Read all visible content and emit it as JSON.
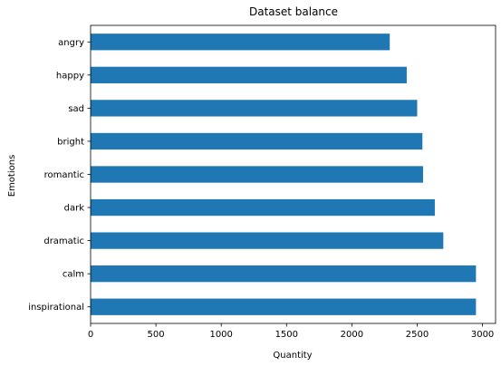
{
  "chart_data": {
    "type": "bar",
    "orientation": "horizontal",
    "title": "Dataset balance",
    "xlabel": "Quantity",
    "ylabel": "Emotions",
    "categories": [
      "angry",
      "happy",
      "sad",
      "bright",
      "romantic",
      "dark",
      "dramatic",
      "calm",
      "inspirational"
    ],
    "values": [
      2290,
      2420,
      2500,
      2540,
      2545,
      2635,
      2700,
      2950,
      2950
    ],
    "xlim": [
      0,
      3100
    ],
    "xticks": [
      0,
      500,
      1000,
      1500,
      2000,
      2500,
      3000
    ],
    "grid": false,
    "legend": "none",
    "bar_color": "#1f77b4"
  }
}
